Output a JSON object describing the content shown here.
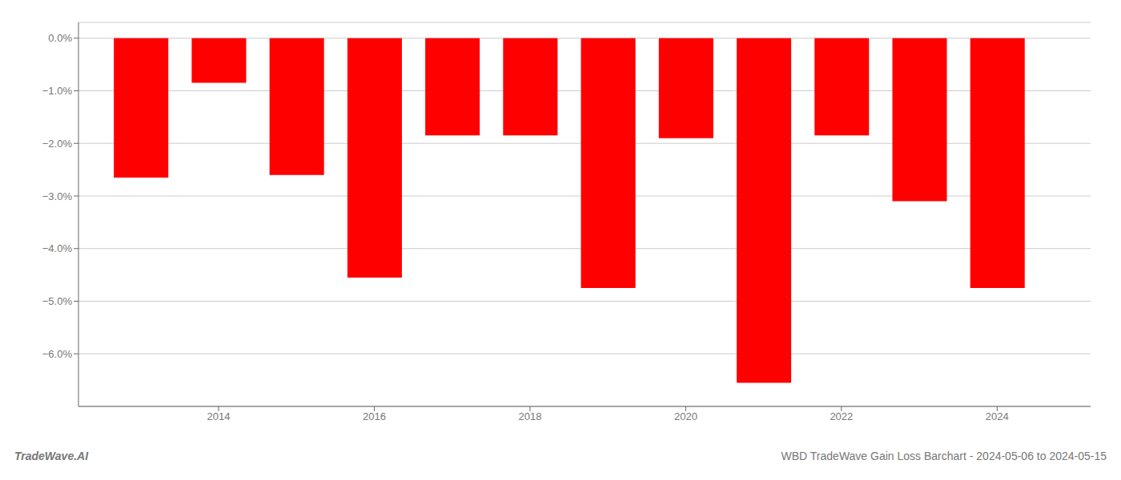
{
  "chart_data": {
    "type": "bar",
    "x": [
      2013,
      2014,
      2015,
      2016,
      2017,
      2018,
      2019,
      2020,
      2021,
      2022,
      2023,
      2024
    ],
    "values": [
      -2.65,
      -0.85,
      -2.6,
      -4.55,
      -1.85,
      -1.85,
      -4.75,
      -1.9,
      -6.55,
      -1.85,
      -3.1,
      -4.75
    ],
    "color": "#ff0000",
    "xlim": [
      2012.2,
      2025.2
    ],
    "xticks": [
      2014,
      2016,
      2018,
      2020,
      2022,
      2024
    ],
    "ylim": [
      -7.0,
      0.3
    ],
    "yticks": [
      {
        "value": 0.0,
        "label": "0.0%"
      },
      {
        "value": -1.0,
        "label": "−1.0%"
      },
      {
        "value": -2.0,
        "label": "−2.0%"
      },
      {
        "value": -3.0,
        "label": "−3.0%"
      },
      {
        "value": -4.0,
        "label": "−4.0%"
      },
      {
        "value": -5.0,
        "label": "−5.0%"
      },
      {
        "value": -6.0,
        "label": "−6.0%"
      }
    ],
    "grid": true,
    "annotations": [
      "TradeWave.AI",
      "WBD TradeWave Gain Loss Barchart - 2024-05-06 to 2024-05-15"
    ]
  }
}
